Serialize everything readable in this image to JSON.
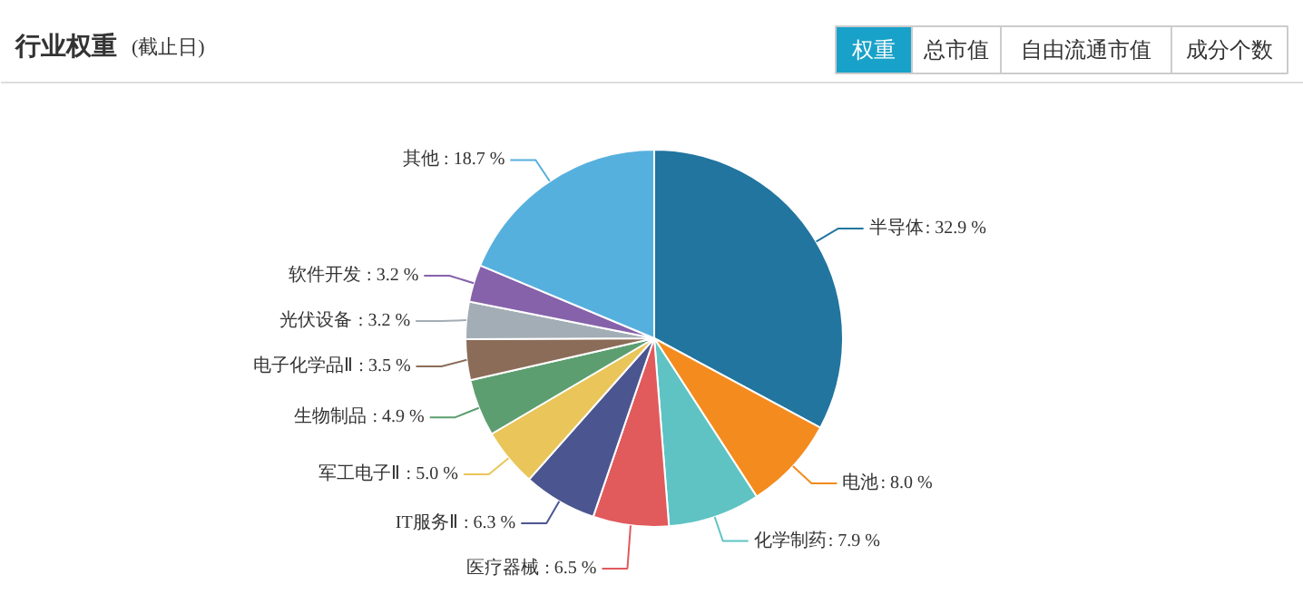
{
  "chart_data": {
    "type": "pie",
    "title": "行业权重",
    "subtitle": "(截止日)",
    "annotations": [
      "权重",
      "总市值",
      "自由流通市值",
      "成分个数"
    ],
    "categories": [
      "半导体",
      "电池",
      "化学制药",
      "医疗器械",
      "IT服务Ⅱ",
      "军工电子Ⅱ",
      "生物制品",
      "电子化学品Ⅱ",
      "光伏设备",
      "软件开发",
      "其他"
    ],
    "values": [
      32.9,
      8.0,
      7.9,
      6.5,
      6.3,
      5.0,
      4.9,
      3.5,
      3.2,
      3.2,
      18.7
    ],
    "colors": [
      "#21759f",
      "#f48b1e",
      "#5fc3c3",
      "#e15a5c",
      "#4b5690",
      "#e9c55a",
      "#5c9e70",
      "#8b6c58",
      "#a3adb5",
      "#8662aa",
      "#56b0dd"
    ],
    "value_labels": [
      ": 32.9 %",
      ": 8.0 %",
      ": 7.9 %",
      ": 6.5 %",
      ": 6.3 %",
      ": 5.0 %",
      ": 4.9 %",
      ": 3.5 %",
      ": 3.2 %",
      ": 3.2 %",
      ": 18.7 %"
    ]
  }
}
